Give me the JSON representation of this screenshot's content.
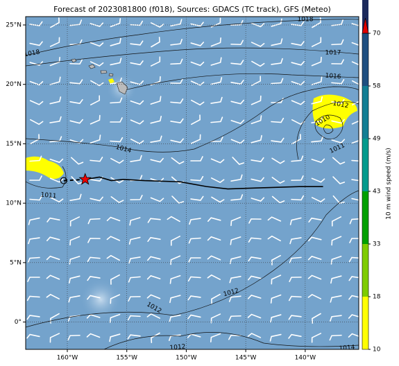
{
  "title": "Forecast of 2023081800 (f018), Sources: GDACS (TC track), GFS (Meteo)",
  "map": {
    "lon_range": [
      -163.5,
      -135.5
    ],
    "lat_range": [
      -2.3,
      25.7
    ],
    "lon_ticks": [
      {
        "value": -160,
        "label": "160°W"
      },
      {
        "value": -155,
        "label": "155°W"
      },
      {
        "value": -150,
        "label": "150°W"
      },
      {
        "value": -145,
        "label": "145°W"
      },
      {
        "value": -140,
        "label": "140°W"
      }
    ],
    "lat_ticks": [
      {
        "value": 0,
        "label": "0°"
      },
      {
        "value": 5,
        "label": "5°N"
      },
      {
        "value": 10,
        "label": "10°N"
      },
      {
        "value": 15,
        "label": "15°N"
      },
      {
        "value": 20,
        "label": "20°N"
      },
      {
        "value": 25,
        "label": "25°N"
      }
    ]
  },
  "isobar_labels": [
    "1018",
    "1018",
    "1017",
    "1016",
    "1014",
    "1012",
    "1010",
    "1011",
    "1011",
    "1012",
    "1012",
    "1012",
    "1014"
  ],
  "track": {
    "past_position": [
      -160.3,
      11.9
    ],
    "current_position": [
      -158.5,
      12.0
    ],
    "forecast_path": [
      [
        -158.5,
        12.0
      ],
      [
        -157.3,
        12.2
      ],
      [
        -156.3,
        11.9
      ],
      [
        -155.3,
        12.0
      ],
      [
        -153.5,
        11.9
      ],
      [
        -150.5,
        11.8
      ],
      [
        -148.3,
        11.4
      ],
      [
        -146.5,
        11.2
      ],
      [
        -143.5,
        11.3
      ],
      [
        -140.5,
        11.4
      ],
      [
        -138.5,
        11.4
      ]
    ]
  },
  "colorbar": {
    "label": "10 m wind speed (m/s)",
    "ticks": [
      10,
      18,
      33,
      43,
      49,
      58,
      70
    ],
    "colors": [
      "#ffff00",
      "#7fcc00",
      "#00a000",
      "#009a8c",
      "#127e94",
      "#1f4f80",
      "#1c2a5c"
    ],
    "extend_color": "#e00000"
  }
}
